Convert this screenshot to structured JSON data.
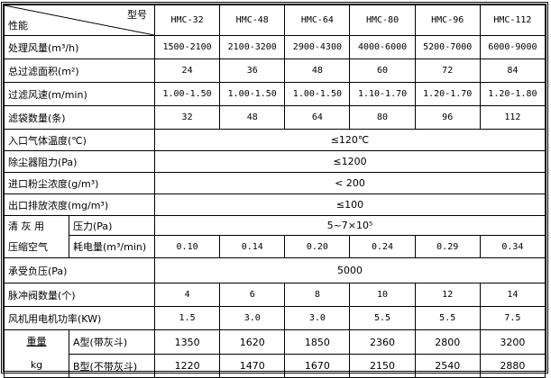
{
  "header": {
    "model_label": "型号",
    "perf_label": "性能",
    "models": [
      "HMC-32",
      "HMC-48",
      "HMC-64",
      "HMC-80",
      "HMC-96",
      "HMC-112"
    ]
  },
  "rows": [
    {
      "label": "处理风量(m³/h)",
      "values": [
        "1500-2100",
        "2100-3200",
        "2900-4300",
        "4000-6000",
        "5200-7000",
        "6000-9000"
      ]
    },
    {
      "label": "总过滤面积(m²)",
      "values": [
        "24",
        "36",
        "48",
        "60",
        "72",
        "84"
      ]
    },
    {
      "label": "过滤风速(m/min)",
      "values": [
        "1.00-1.50",
        "1.00-1.50",
        "1.00-1.50",
        "1.10-1.70",
        "1.20-1.70",
        "1.20-1.80"
      ]
    },
    {
      "label": "滤袋数量(条)",
      "values": [
        "32",
        "48",
        "64",
        "80",
        "96",
        "112"
      ]
    }
  ],
  "merged": [
    {
      "label": "入口气体温度(℃)",
      "value": "≤120℃"
    },
    {
      "label": "除尘器阻力(Pa)",
      "value": "≤1200"
    },
    {
      "label": "进口粉尘浓度(g/m³)",
      "value": "< 200"
    },
    {
      "label": "出口排放浓度(mg/m³)",
      "value": "≤100"
    }
  ],
  "air": {
    "group_line1": "清 灰 用",
    "group_line2": "压缩空气",
    "pressure_label": "压力(Pa)",
    "pressure_value": "5~7×10⁵",
    "consumption_label": "耗电量(m³/min)",
    "consumption_values": [
      "0.10",
      "0.14",
      "0.20",
      "0.24",
      "0.29",
      "0.34"
    ]
  },
  "negative_pressure": {
    "label": "承受负压(Pa)",
    "value": "5000"
  },
  "rows2": [
    {
      "label": "脉冲阀数量(个)",
      "values": [
        "4",
        "6",
        "8",
        "10",
        "12",
        "14"
      ]
    },
    {
      "label": "风机用电机功率(KW)",
      "values": [
        "1.5",
        "3.0",
        "3.0",
        "5.5",
        "5.5",
        "7.5"
      ]
    }
  ],
  "weight": {
    "label": "重量",
    "unit": "kg",
    "a_label": "A型(带灰斗)",
    "a_values": [
      "1350",
      "1620",
      "1850",
      "2360",
      "2800",
      "3200"
    ],
    "b_label": "B型(不带灰斗)",
    "b_values": [
      "1220",
      "1470",
      "1670",
      "2150",
      "2540",
      "2880"
    ]
  }
}
